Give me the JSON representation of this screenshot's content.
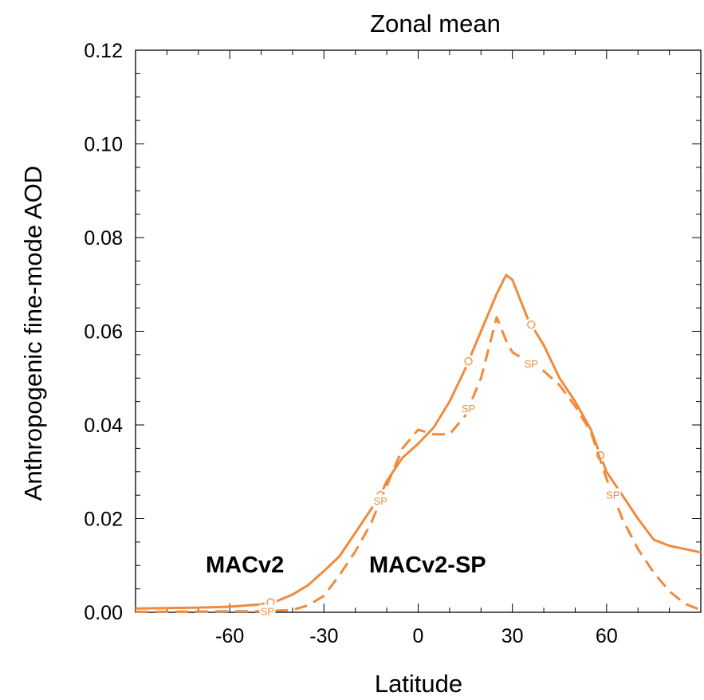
{
  "chart_data": {
    "type": "line",
    "title": "Zonal mean",
    "xlabel": "Latitude",
    "ylabel": "Anthropogenic fine-mode AOD",
    "xlim": [
      -90,
      90
    ],
    "ylim": [
      0,
      0.12
    ],
    "xticks": [
      -60,
      -30,
      0,
      30,
      60
    ],
    "xtick_labels": [
      "-60",
      "-30",
      "0",
      "30",
      "60"
    ],
    "yticks": [
      0,
      0.02,
      0.04,
      0.06,
      0.08,
      0.1,
      0.12
    ],
    "ytick_labels": [
      "0.00",
      "0.02",
      "0.04",
      "0.06",
      "0.08",
      "0.10",
      "0.12"
    ],
    "grid": false,
    "color": "#f08a3c",
    "series": [
      {
        "name": "MACv2",
        "style": "solid",
        "marker": "O",
        "label_text": "MACv2",
        "x": [
          -90,
          -80,
          -70,
          -60,
          -50,
          -45,
          -40,
          -35,
          -30,
          -25,
          -20,
          -15,
          -12,
          -10,
          -5,
          0,
          5,
          10,
          15,
          20,
          25,
          28,
          30,
          35,
          40,
          45,
          50,
          55,
          58,
          60,
          65,
          70,
          75,
          80,
          85,
          90
        ],
        "y": [
          0.0008,
          0.0009,
          0.001,
          0.0012,
          0.0017,
          0.0024,
          0.0038,
          0.0058,
          0.0088,
          0.012,
          0.017,
          0.022,
          0.025,
          0.028,
          0.033,
          0.036,
          0.0395,
          0.045,
          0.052,
          0.06,
          0.068,
          0.072,
          0.071,
          0.0625,
          0.057,
          0.05,
          0.045,
          0.039,
          0.0335,
          0.03,
          0.025,
          0.02,
          0.0155,
          0.0142,
          0.0135,
          0.0128
        ],
        "marker_x": [
          -47,
          -12,
          16,
          36,
          58
        ]
      },
      {
        "name": "MACv2-SP",
        "style": "dashed",
        "marker": "SP",
        "label_text": "MACv2-SP",
        "x": [
          -90,
          -60,
          -50,
          -40,
          -35,
          -30,
          -25,
          -20,
          -15,
          -10,
          -5,
          0,
          5,
          10,
          15,
          20,
          25,
          28,
          30,
          35,
          40,
          45,
          50,
          55,
          60,
          65,
          70,
          75,
          80,
          85,
          90
        ],
        "y": [
          0.0001,
          0.0002,
          0.0002,
          0.0005,
          0.0015,
          0.0035,
          0.008,
          0.013,
          0.019,
          0.027,
          0.035,
          0.039,
          0.038,
          0.038,
          0.042,
          0.05,
          0.063,
          0.058,
          0.0555,
          0.0535,
          0.0515,
          0.0485,
          0.044,
          0.0385,
          0.0285,
          0.02,
          0.0135,
          0.0085,
          0.0045,
          0.0018,
          0.0005
        ],
        "marker_x": [
          -48,
          -12,
          16,
          36,
          62
        ]
      }
    ]
  }
}
